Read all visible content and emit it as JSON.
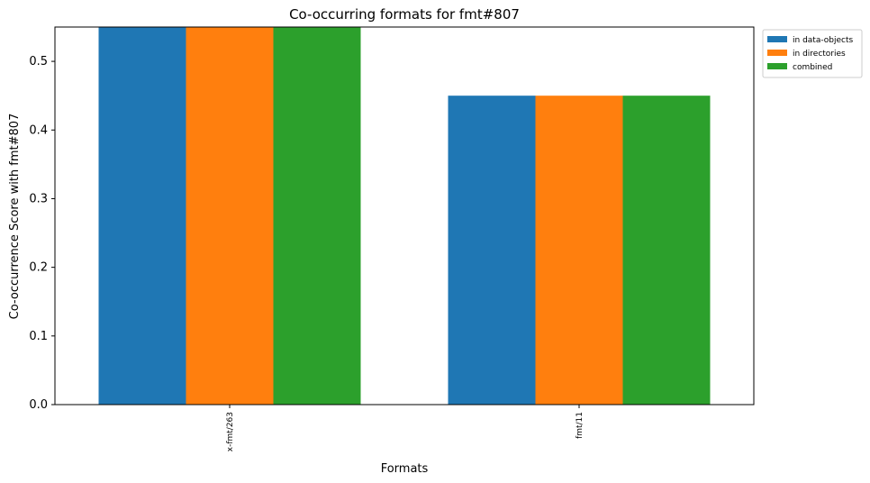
{
  "chart_data": {
    "type": "bar",
    "title": "Co-occurring formats for fmt#807",
    "xlabel": "Formats",
    "ylabel": "Co-occurrence Score with fmt#807",
    "categories": [
      "x-fmt/263",
      "fmt/11"
    ],
    "series": [
      {
        "name": "in data-objects",
        "values": [
          0.55,
          0.45
        ],
        "color": "#1f77b4"
      },
      {
        "name": "in directories",
        "values": [
          0.55,
          0.45
        ],
        "color": "#ff7f0e"
      },
      {
        "name": "combined",
        "values": [
          0.55,
          0.45
        ],
        "color": "#2ca02c"
      }
    ],
    "ylim": [
      0,
      0.55
    ],
    "yticks": [
      "0.0",
      "0.1",
      "0.2",
      "0.3",
      "0.4",
      "0.5"
    ],
    "grid": false,
    "legend_position": "outside-top-right"
  }
}
